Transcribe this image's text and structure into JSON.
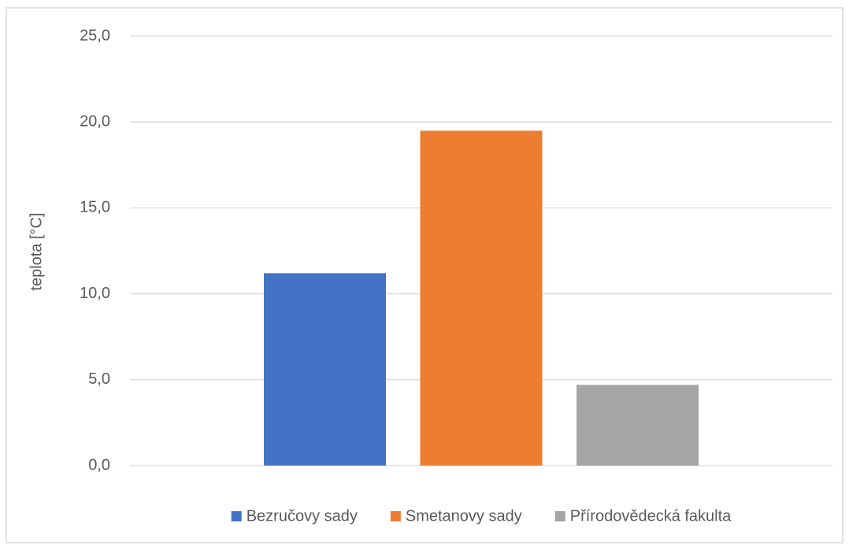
{
  "chart_data": {
    "type": "bar",
    "y_label": "teplota [°C]",
    "categories": [
      null
    ],
    "series": [
      {
        "name": "Bezručovy sady",
        "color": "#4472c4",
        "values": [
          11.2
        ]
      },
      {
        "name": "Smetanovy sady",
        "color": "#ed7d31",
        "values": [
          19.5
        ]
      },
      {
        "name": "Přírodovědecká fakulta",
        "color": "#a5a5a5",
        "values": [
          4.7
        ]
      }
    ],
    "ylim": [
      0,
      25
    ],
    "yticks": [
      {
        "value": 0,
        "label": "0,0"
      },
      {
        "value": 5,
        "label": "5,0"
      },
      {
        "value": 10,
        "label": "10,0"
      },
      {
        "value": 15,
        "label": "15,0"
      },
      {
        "value": 20,
        "label": "20,0"
      },
      {
        "value": 25,
        "label": "25,0"
      }
    ],
    "grid": true,
    "legend": "bottom"
  }
}
